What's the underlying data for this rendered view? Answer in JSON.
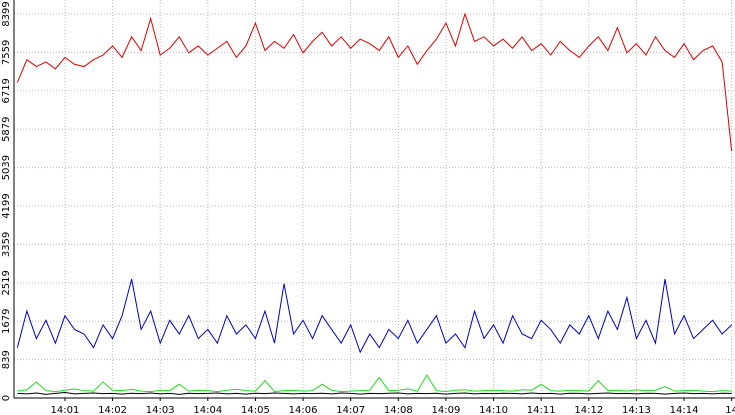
{
  "chart_data": {
    "type": "line",
    "x": [
      0,
      0.2,
      0.4,
      0.6,
      0.8,
      1,
      1.2,
      1.4,
      1.6,
      1.8,
      2,
      2.2,
      2.4,
      2.6,
      2.8,
      3,
      3.2,
      3.4,
      3.6,
      3.8,
      4,
      4.2,
      4.4,
      4.6,
      4.8,
      5,
      5.2,
      5.4,
      5.6,
      5.8,
      6,
      6.2,
      6.4,
      6.6,
      6.8,
      7,
      7.2,
      7.4,
      7.6,
      7.8,
      8,
      8.2,
      8.4,
      8.6,
      8.8,
      9,
      9.2,
      9.4,
      9.6,
      9.8,
      10,
      10.2,
      10.4,
      10.6,
      10.8,
      11,
      11.2,
      11.4,
      11.6,
      11.8,
      12,
      12.2,
      12.4,
      12.6,
      12.8,
      13,
      13.2,
      13.4,
      13.6,
      13.8,
      14,
      14.2,
      14.4,
      14.6,
      14.8,
      15
    ],
    "series": [
      {
        "color": "#e00000",
        "values": [
          6900,
          7400,
          7250,
          7350,
          7200,
          7450,
          7300,
          7250,
          7400,
          7500,
          7700,
          7450,
          7900,
          7600,
          8300,
          7500,
          7650,
          7900,
          7550,
          7700,
          7500,
          7650,
          7800,
          7450,
          7700,
          8200,
          7600,
          7800,
          7650,
          7950,
          7550,
          7800,
          8000,
          7700,
          7900,
          7650,
          7850,
          7750,
          7600,
          7900,
          7450,
          7700,
          7300,
          7600,
          7850,
          8200,
          7700,
          8399,
          7800,
          7900,
          7700,
          7850,
          7650,
          7900,
          7600,
          7750,
          7500,
          7800,
          7600,
          7450,
          7700,
          7900,
          7600,
          8100,
          7550,
          7750,
          7500,
          7900,
          7600,
          7450,
          7750,
          7400,
          7600,
          7700,
          7350,
          5400
        ]
      },
      {
        "color": "#0000c8",
        "values": [
          1100,
          1900,
          1300,
          1700,
          1200,
          1800,
          1500,
          1400,
          1100,
          1600,
          1300,
          1800,
          2600,
          1500,
          1900,
          1200,
          1700,
          1400,
          1800,
          1300,
          1500,
          1200,
          1800,
          1400,
          1600,
          1300,
          1900,
          1200,
          2500,
          1400,
          1700,
          1300,
          1800,
          1500,
          1200,
          1600,
          1000,
          1400,
          1100,
          1500,
          1300,
          1700,
          1200,
          1500,
          1800,
          1200,
          1400,
          1100,
          1900,
          1300,
          1600,
          1200,
          1800,
          1400,
          1300,
          1700,
          1500,
          1200,
          1600,
          1400,
          1800,
          1300,
          1900,
          1500,
          2200,
          1300,
          1700,
          1200,
          2600,
          1400,
          1800,
          1300,
          1500,
          1700,
          1400,
          1600
        ]
      },
      {
        "color": "#22dd22",
        "values": [
          150,
          180,
          350,
          160,
          140,
          170,
          200,
          160,
          150,
          350,
          170,
          160,
          190,
          150,
          140,
          170,
          160,
          300,
          150,
          170,
          160,
          140,
          170,
          190,
          160,
          150,
          380,
          140,
          160,
          170,
          150,
          160,
          300,
          170,
          140,
          150,
          160,
          170,
          450,
          160,
          170,
          200,
          150,
          500,
          160,
          140,
          170,
          180,
          150,
          160,
          170,
          160,
          150,
          180,
          170,
          300,
          160,
          150,
          170,
          160,
          150,
          380,
          160,
          170,
          150,
          180,
          160,
          170,
          250,
          150,
          160,
          170,
          150,
          140,
          160,
          150
        ]
      },
      {
        "color": "#000000",
        "values": [
          100,
          90,
          110,
          80,
          100,
          120,
          90,
          100,
          110,
          95,
          100,
          85,
          105,
          95,
          110,
          90,
          100,
          80,
          105,
          95,
          100,
          110,
          90,
          100,
          85,
          105,
          95,
          110,
          100,
          90,
          100,
          95,
          105,
          90,
          110,
          100,
          85,
          100,
          95,
          105,
          110,
          90,
          100,
          95,
          105,
          85,
          100,
          110,
          90,
          100,
          95,
          105,
          100,
          90,
          110,
          95,
          100,
          85,
          105,
          100,
          90,
          100,
          110,
          95,
          100,
          90,
          105,
          100,
          85,
          100,
          110,
          95,
          100,
          90,
          105,
          100
        ]
      }
    ],
    "xlim": [
      -0.07,
      15.07
    ],
    "xticks": [
      {
        "value": 1,
        "label": "14:01"
      },
      {
        "value": 2,
        "label": "14:02"
      },
      {
        "value": 3,
        "label": "14:03"
      },
      {
        "value": 4,
        "label": "14:04"
      },
      {
        "value": 5,
        "label": "14:05"
      },
      {
        "value": 6,
        "label": "14:06"
      },
      {
        "value": 7,
        "label": "14:07"
      },
      {
        "value": 8,
        "label": "14:08"
      },
      {
        "value": 9,
        "label": "14:09"
      },
      {
        "value": 10,
        "label": "14:10"
      },
      {
        "value": 11,
        "label": "14:11"
      },
      {
        "value": 12,
        "label": "14:12"
      },
      {
        "value": 13,
        "label": "14:13"
      },
      {
        "value": 14,
        "label": "14:14"
      },
      {
        "value": 15,
        "label": "14"
      }
    ],
    "ylim": [
      0,
      8399
    ],
    "yticks": [
      0,
      839,
      1679,
      2519,
      3359,
      4199,
      5039,
      5879,
      6719,
      7559,
      8399
    ],
    "grid": true
  }
}
